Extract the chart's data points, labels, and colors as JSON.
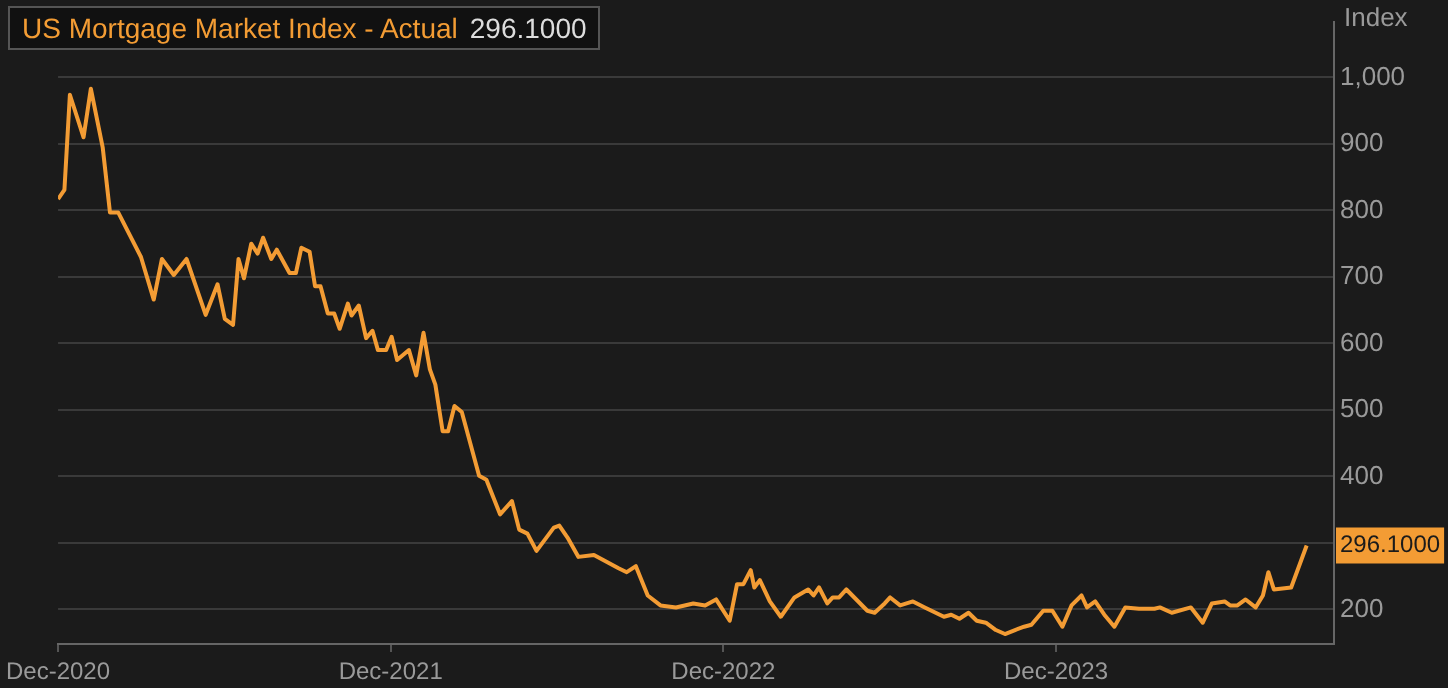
{
  "chart_data": {
    "type": "line",
    "title": "US Mortgage Market Index - Actual",
    "ylabel": "Index",
    "x": [
      "2020-12-01",
      "2020-12-08",
      "2020-12-14",
      "2020-12-29",
      "2021-01-06",
      "2021-01-19",
      "2021-01-27",
      "2021-02-05",
      "2021-03-02",
      "2021-03-16",
      "2021-03-25",
      "2021-04-07",
      "2021-04-21",
      "2021-05-12",
      "2021-05-25",
      "2021-06-02",
      "2021-06-11",
      "2021-06-17",
      "2021-06-23",
      "2021-07-01",
      "2021-07-08",
      "2021-07-14",
      "2021-07-23",
      "2021-07-29",
      "2021-08-12",
      "2021-08-19",
      "2021-08-25",
      "2021-09-03",
      "2021-09-09",
      "2021-09-15",
      "2021-09-23",
      "2021-09-30",
      "2021-10-06",
      "2021-10-15",
      "2021-10-19",
      "2021-10-27",
      "2021-11-04",
      "2021-11-11",
      "2021-11-17",
      "2021-11-26",
      "2021-12-02",
      "2021-12-08",
      "2021-12-21",
      "2021-12-29",
      "2022-01-06",
      "2022-01-13",
      "2022-01-19",
      "2022-01-27",
      "2022-02-02",
      "2022-02-09",
      "2022-02-17",
      "2022-03-08",
      "2022-03-16",
      "2022-03-31",
      "2022-04-13",
      "2022-04-21",
      "2022-04-30",
      "2022-05-10",
      "2022-05-29",
      "2022-06-04",
      "2022-06-13",
      "2022-06-25",
      "2022-07-12",
      "2022-08-08",
      "2022-08-17",
      "2022-08-27",
      "2022-09-09",
      "2022-09-23",
      "2022-10-10",
      "2022-10-29",
      "2022-11-11",
      "2022-11-23",
      "2022-12-08",
      "2022-12-16",
      "2022-12-23",
      "2022-12-31",
      "2023-01-04",
      "2023-01-10",
      "2023-01-21",
      "2023-02-02",
      "2023-02-17",
      "2023-03-04",
      "2023-03-10",
      "2023-03-16",
      "2023-03-25",
      "2023-03-31",
      "2023-04-07",
      "2023-04-15",
      "2023-05-08",
      "2023-05-16",
      "2023-05-27",
      "2023-06-02",
      "2023-06-13",
      "2023-06-27",
      "2023-07-10",
      "2023-07-31",
      "2023-08-08",
      "2023-08-17",
      "2023-08-27",
      "2023-09-05",
      "2023-09-15",
      "2023-09-26",
      "2023-10-06",
      "2023-10-17",
      "2023-10-27",
      "2023-11-04",
      "2023-11-17",
      "2023-11-27",
      "2023-12-08",
      "2023-12-18",
      "2023-12-29",
      "2024-01-04",
      "2024-01-13",
      "2024-01-23",
      "2024-02-03",
      "2024-02-15",
      "2024-03-01",
      "2024-03-18",
      "2024-03-24",
      "2024-04-06",
      "2024-04-27",
      "2024-05-10",
      "2024-05-20",
      "2024-06-03",
      "2024-06-09",
      "2024-06-17",
      "2024-06-26",
      "2024-07-07",
      "2024-07-15",
      "2024-07-21",
      "2024-07-27",
      "2024-08-15",
      "2024-09-01"
    ],
    "series": [
      {
        "color": "#f39c34",
        "values": [
          817,
          831,
          974,
          910,
          983,
          895,
          797,
          797,
          730,
          666,
          727,
          703,
          727,
          643,
          689,
          637,
          628,
          727,
          698,
          750,
          735,
          759,
          727,
          741,
          706,
          706,
          744,
          738,
          686,
          686,
          645,
          645,
          622,
          660,
          642,
          657,
          608,
          619,
          590,
          590,
          610,
          575,
          590,
          552,
          616,
          561,
          538,
          468,
          468,
          506,
          497,
          401,
          395,
          343,
          363,
          320,
          314,
          288,
          323,
          326,
          308,
          279,
          282,
          262,
          256,
          265,
          221,
          206,
          203,
          209,
          206,
          215,
          183,
          238,
          238,
          259,
          233,
          244,
          212,
          189,
          218,
          230,
          221,
          233,
          209,
          218,
          218,
          230,
          198,
          195,
          209,
          218,
          206,
          212,
          203,
          189,
          192,
          186,
          195,
          183,
          180,
          169,
          163,
          169,
          174,
          177,
          198,
          198,
          174,
          206,
          221,
          203,
          212,
          192,
          174,
          203,
          201,
          201,
          203,
          195,
          203,
          180,
          209,
          212,
          206,
          206,
          215,
          203,
          221,
          256,
          230,
          233,
          296.1
        ],
        "value_labels": [
          null,
          null,
          null,
          null,
          null,
          null,
          null,
          null,
          null,
          null,
          null,
          null,
          null,
          null,
          null,
          null,
          null,
          null,
          null,
          null,
          null,
          null,
          null,
          null,
          null,
          null,
          null,
          null,
          null,
          null,
          null,
          null,
          null,
          null,
          null,
          null,
          null,
          null,
          null,
          null,
          null,
          null,
          null,
          null,
          null,
          null,
          null,
          null,
          null,
          null,
          null,
          null,
          null,
          null,
          null,
          null,
          null,
          null,
          null,
          null,
          null,
          null,
          null,
          null,
          null,
          null,
          null,
          null,
          null,
          null,
          null,
          null,
          null,
          null,
          null,
          null,
          null,
          null,
          null,
          null,
          null,
          null,
          null,
          null,
          null,
          null,
          null,
          null,
          null,
          null,
          null,
          null,
          null,
          null,
          null,
          null,
          null,
          null,
          null,
          null,
          null,
          null,
          null,
          null,
          null,
          null,
          null,
          null,
          null,
          null,
          null,
          null,
          null,
          null,
          null,
          null,
          null,
          null,
          null,
          null,
          null,
          null,
          null,
          null,
          null,
          null,
          null,
          null,
          null,
          null,
          null,
          null,
          "296.1000"
        ]
      }
    ],
    "xlim": [
      "2020-12-01",
      "2024-10-01"
    ],
    "ylim": [
      148,
      1084
    ],
    "xticks": [
      {
        "value": "2020-12",
        "label": "Dec-2020"
      },
      {
        "value": "2021-12",
        "label": "Dec-2021"
      },
      {
        "value": "2022-12",
        "label": "Dec-2022"
      },
      {
        "value": "2023-12",
        "label": "Dec-2023"
      }
    ],
    "yticks": [
      200,
      {
        "value": 300,
        "label": null
      },
      400,
      500,
      600,
      700,
      800,
      900,
      {
        "value": 1000,
        "label": "1,000"
      }
    ],
    "annotations": [
      "296.1000"
    ],
    "grid": "y",
    "marker": "none",
    "line_style": "solid"
  }
}
